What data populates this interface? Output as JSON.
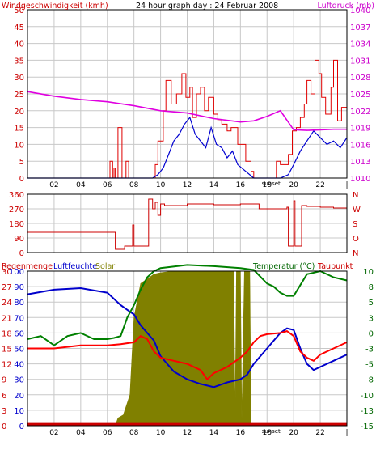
{
  "header": {
    "wind_title": "Windgeschwindigkeit (kmh)",
    "period_title": "24 hour graph day : 24 Februar 2008",
    "pressure_title": "Luftdruck (mb)"
  },
  "panel3_titles": {
    "rain": "Regenmenge",
    "humidity": "Luftfeuchte",
    "solar": "Solar",
    "temperature": "Temperatur (°C)",
    "dewpoint": "Taupunkt"
  },
  "x_axis": {
    "ticks": [
      "02",
      "04",
      "06",
      "08",
      "10",
      "12",
      "14",
      "16",
      "18",
      "20",
      "22"
    ],
    "end_marker": "|",
    "event_label": "sunset"
  },
  "colors": {
    "wind": "#e00000",
    "gust": "#0000d0",
    "pressure": "#e000e0",
    "direction": "#cc0000",
    "rain": "#cc0000",
    "humidity": "#0000cc",
    "solar": "#808000",
    "temperature": "#008000",
    "dewpoint": "#ff0000",
    "grid": "#c8c8c8",
    "frame": "#000000",
    "left_axis": "#cc0000",
    "right_axis_pressure": "#cc00cc",
    "right_axis_temp": "#006600",
    "dir_axis": "#cc0000"
  },
  "chart_data": [
    {
      "type": "line",
      "name": "wind-pressure",
      "x_unit": "hours",
      "xlim": [
        0,
        24
      ],
      "y_left_ticks": [
        "0",
        "5",
        "10",
        "15",
        "20",
        "25",
        "30",
        "35",
        "40",
        "45",
        "50"
      ],
      "ylim_left": [
        0,
        50
      ],
      "y_right_ticks": [
        "1010",
        "1013",
        "1016",
        "1019",
        "1022",
        "1025",
        "1028",
        "1031",
        "1034",
        "1037",
        "1040"
      ],
      "ylim_right": [
        1010,
        1040
      ],
      "series": [
        {
          "role": "wind",
          "x": [
            0,
            5.8,
            6.2,
            6.4,
            6.5,
            6.6,
            6.8,
            7.1,
            7.4,
            7.6,
            7.8,
            8.5,
            9.6,
            9.8,
            10.2,
            10.4,
            10.8,
            11.2,
            11.6,
            11.9,
            12.2,
            12.4,
            12.7,
            13.0,
            13.3,
            13.6,
            14.0,
            14.3,
            14.6,
            15.0,
            15.3,
            15.8,
            16.4,
            16.8,
            17.0,
            17.6,
            18.4,
            18.7,
            19.0,
            19.6,
            19.9,
            20.2,
            20.5,
            20.8,
            21.0,
            21.3,
            21.6,
            21.9,
            22.1,
            22.4,
            22.8,
            23.0,
            23.3,
            23.6,
            24.0
          ],
          "y": [
            0,
            0,
            5,
            0,
            3,
            0,
            15,
            0,
            5,
            0,
            0,
            0,
            4,
            11,
            20,
            29,
            22,
            25,
            31,
            24,
            27,
            18,
            25,
            27,
            20,
            24,
            19,
            17,
            16,
            14,
            15,
            10,
            5,
            2,
            0,
            0,
            0,
            5,
            4,
            7,
            14,
            15,
            18,
            22,
            29,
            25,
            35,
            31,
            24,
            19,
            27,
            35,
            17,
            21,
            28
          ]
        },
        {
          "role": "gust",
          "x": [
            0,
            6.5,
            8.5,
            9.4,
            9.8,
            10.2,
            10.6,
            11.0,
            11.4,
            11.8,
            12.2,
            12.6,
            13.0,
            13.4,
            13.8,
            14.2,
            14.6,
            15.0,
            15.4,
            15.8,
            16.4,
            17.0,
            18.0,
            19.0,
            19.6,
            20.0,
            20.5,
            21.0,
            21.5,
            22.0,
            22.5,
            23.0,
            23.5,
            24.0
          ],
          "y": [
            0,
            0,
            0,
            0,
            1,
            3,
            7,
            11,
            13,
            16,
            18,
            13,
            11,
            9,
            15,
            10,
            9,
            6,
            8,
            4,
            2,
            0,
            0,
            0,
            1,
            4,
            8,
            11,
            14,
            12,
            10,
            11,
            9,
            12
          ]
        },
        {
          "role": "pressure",
          "x": [
            0,
            2,
            4,
            6,
            8,
            10,
            12,
            14,
            16,
            17,
            18,
            19,
            20,
            21,
            22,
            23,
            24
          ],
          "y": [
            1025.4,
            1024.6,
            1024.0,
            1023.6,
            1022.9,
            1022.0,
            1021.6,
            1020.6,
            1020.0,
            1020.2,
            1021.0,
            1022.0,
            1018.6,
            1018.5,
            1018.6,
            1018.7,
            1018.7
          ]
        }
      ]
    },
    {
      "type": "line",
      "name": "wind-direction",
      "x_unit": "hours",
      "xlim": [
        0,
        24
      ],
      "y_left_ticks": [
        "360",
        "270",
        "180",
        "90",
        "0"
      ],
      "y_right_ticks": [
        "N",
        "W",
        "S",
        "O",
        "N"
      ],
      "ylim": [
        0,
        360
      ],
      "series": [
        {
          "role": "direction",
          "x": [
            0,
            6.5,
            6.6,
            7.1,
            7.3,
            7.6,
            7.9,
            8.0,
            8.5,
            9.0,
            9.1,
            9.4,
            9.6,
            9.8,
            10.0,
            10.3,
            12,
            14,
            16,
            17.4,
            19.0,
            19.5,
            19.6,
            19.8,
            20.0,
            20.1,
            20.5,
            20.6,
            21,
            22,
            23,
            24
          ],
          "y": [
            125,
            125,
            20,
            20,
            40,
            40,
            170,
            40,
            40,
            40,
            330,
            270,
            310,
            230,
            300,
            290,
            300,
            295,
            300,
            270,
            270,
            280,
            40,
            40,
            320,
            40,
            40,
            290,
            285,
            280,
            275,
            285
          ]
        }
      ]
    },
    {
      "type": "line",
      "name": "rain-humidity-solar-temperature",
      "x_unit": "hours",
      "xlim": [
        0,
        24
      ],
      "y_left_rain_ticks": [
        "0",
        "3",
        "6",
        "9",
        "12",
        "15",
        "18",
        "21",
        "24",
        "27",
        "30"
      ],
      "y_left_humidity_ticks": [
        "0",
        "10",
        "20",
        "30",
        "40",
        "50",
        "60",
        "70",
        "80",
        "90",
        "100"
      ],
      "humidity_ylim": [
        0,
        100
      ],
      "y_right_ticks": [
        "10",
        "8",
        "5",
        "3",
        "0",
        "-3",
        "-5",
        "-8",
        "-10",
        "-13",
        "-15"
      ],
      "temp_ylim": [
        -15,
        10
      ],
      "solar_scale_max": 100,
      "series": [
        {
          "role": "rain",
          "x": [
            0,
            24
          ],
          "y": [
            0.3,
            0.3
          ]
        },
        {
          "role": "humidity",
          "x": [
            0,
            2,
            4,
            6,
            7,
            7.5,
            8,
            8.5,
            9,
            9.5,
            10,
            11,
            12,
            13,
            14,
            15,
            16,
            16.5,
            17,
            17.5,
            18,
            18.5,
            19,
            19.5,
            20,
            20.5,
            21,
            21.5,
            22,
            23,
            24
          ],
          "y": [
            85,
            88,
            89,
            86,
            78,
            75,
            72,
            65,
            60,
            55,
            45,
            35,
            30,
            27,
            25,
            28,
            30,
            33,
            40,
            45,
            50,
            55,
            60,
            63,
            62,
            50,
            40,
            36,
            38,
            42,
            46
          ]
        },
        {
          "role": "solar",
          "x": [
            0,
            6.6,
            6.8,
            7.2,
            7.7,
            8.0,
            8.5,
            9.5,
            10,
            11,
            12,
            13,
            14,
            15,
            15.5,
            15.6,
            15.7,
            15.9,
            16,
            16.1,
            16.3,
            16.4,
            16.7,
            16.8,
            17,
            24
          ],
          "y": [
            0,
            0,
            5,
            7,
            20,
            70,
            92,
            98,
            99,
            100,
            100,
            100,
            100,
            100,
            100,
            5,
            100,
            100,
            100,
            5,
            100,
            100,
            100,
            0,
            0,
            0
          ]
        },
        {
          "role": "temperature",
          "x": [
            0,
            1,
            2,
            3,
            4,
            5,
            6,
            6.5,
            7,
            7.5,
            8,
            8.5,
            9,
            9.5,
            10,
            12,
            14,
            16,
            17,
            18,
            18.5,
            19,
            19.5,
            20,
            21,
            22,
            23,
            24
          ],
          "y": [
            -1.0,
            -0.5,
            -2.0,
            -0.5,
            0.0,
            -1.0,
            -1.0,
            -0.8,
            -0.5,
            2.5,
            4.5,
            7.0,
            9.0,
            10.0,
            10.5,
            11.0,
            10.8,
            10.5,
            10.2,
            8.0,
            7.5,
            6.5,
            6.0,
            6.0,
            9.5,
            10.0,
            9.0,
            8.5
          ]
        },
        {
          "role": "dewpoint",
          "x": [
            0,
            2,
            4,
            6,
            7,
            8,
            8.5,
            9,
            9.5,
            10,
            11,
            12,
            13,
            13.5,
            14,
            15,
            16,
            16.5,
            17,
            17.5,
            18,
            19,
            19.5,
            20,
            20.5,
            21,
            21.5,
            22,
            23,
            24
          ],
          "y": [
            -2.5,
            -2.5,
            -2.0,
            -2.0,
            -1.8,
            -1.5,
            -0.5,
            -1.0,
            -3.0,
            -4.0,
            -4.5,
            -5.0,
            -6.0,
            -7.5,
            -6.5,
            -5.5,
            -4.0,
            -3.0,
            -1.5,
            -0.5,
            -0.2,
            0.0,
            0.3,
            -0.5,
            -3.0,
            -4.0,
            -4.5,
            -3.5,
            -2.5,
            -1.5
          ]
        }
      ]
    }
  ]
}
